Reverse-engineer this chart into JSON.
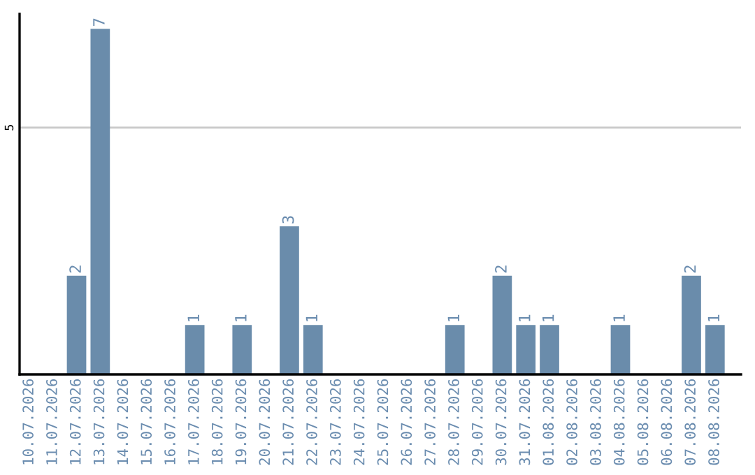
{
  "chart_data": {
    "type": "bar",
    "categories": [
      "10.07.2026",
      "11.07.2026",
      "12.07.2026",
      "13.07.2026",
      "14.07.2026",
      "15.07.2026",
      "16.07.2026",
      "17.07.2026",
      "18.07.2026",
      "19.07.2026",
      "20.07.2026",
      "21.07.2026",
      "22.07.2026",
      "23.07.2026",
      "24.07.2026",
      "25.07.2026",
      "26.07.2026",
      "27.07.2026",
      "28.07.2026",
      "29.07.2026",
      "30.07.2026",
      "31.07.2026",
      "01.08.2026",
      "02.08.2026",
      "03.08.2026",
      "04.08.2026",
      "05.08.2026",
      "06.08.2026",
      "07.08.2026",
      "08.08.2026"
    ],
    "values": [
      0,
      0,
      2,
      7,
      0,
      0,
      0,
      1,
      0,
      1,
      0,
      3,
      1,
      0,
      0,
      0,
      0,
      0,
      1,
      0,
      2,
      1,
      1,
      0,
      0,
      1,
      0,
      0,
      2,
      1
    ],
    "value_labels": [
      null,
      null,
      "2",
      "7",
      null,
      null,
      null,
      "1",
      null,
      "1",
      null,
      "3",
      "1",
      null,
      null,
      null,
      null,
      null,
      "1",
      null,
      "2",
      "1",
      "1",
      null,
      null,
      "1",
      null,
      null,
      "2",
      "1"
    ],
    "color": "#6a8cab",
    "ylim": [
      0,
      7.3
    ],
    "yticks": [
      5
    ],
    "grid": "y"
  }
}
